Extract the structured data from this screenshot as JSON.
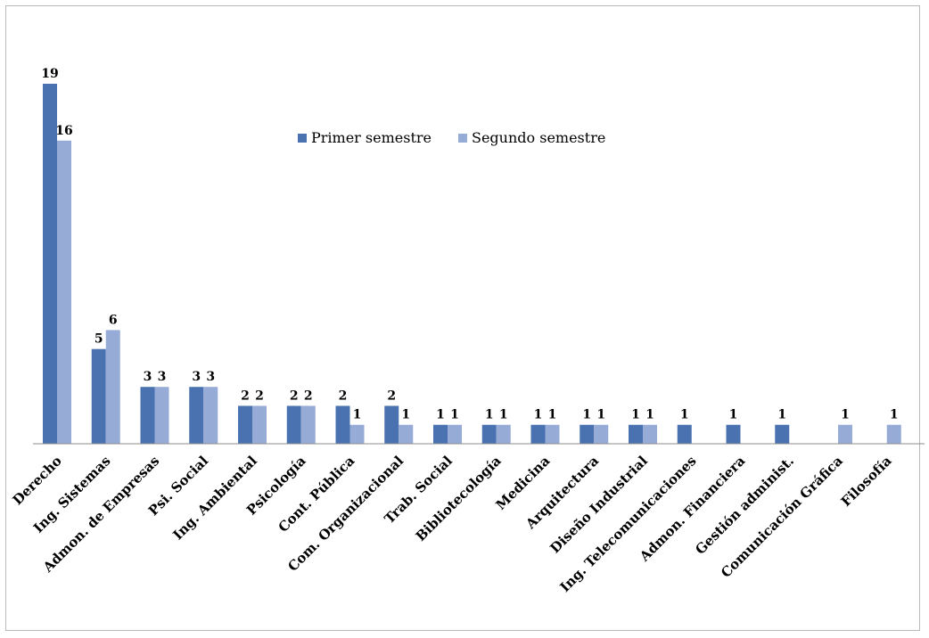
{
  "chart_data": {
    "type": "bar",
    "categories": [
      "Derecho",
      "Ing. Sistemas",
      "Admon. de Empresas",
      "Psi. Social",
      "Ing. Ambiental",
      "Psicología",
      "Cont. Pública",
      "Com. Organizacional",
      "Trab. Social",
      "Bibliotecología",
      "Medicina",
      "Arquitectura",
      "Diseño Industrial",
      "Ing. Telecomunicaciones",
      "Admon. Financiera",
      "Gestión administ.",
      "Comunicación Gráfica",
      "Filosofía"
    ],
    "series": [
      {
        "name": "Primer semestre",
        "color": "#4a72b0",
        "values": [
          19,
          5,
          3,
          3,
          2,
          2,
          2,
          2,
          1,
          1,
          1,
          1,
          1,
          1,
          1,
          1,
          null,
          null
        ]
      },
      {
        "name": "Segundo semestre",
        "color": "#96abd6",
        "values": [
          16,
          6,
          3,
          3,
          2,
          2,
          1,
          1,
          1,
          1,
          1,
          1,
          1,
          null,
          null,
          null,
          1,
          1
        ]
      }
    ],
    "ylim": [
      0,
      19
    ],
    "grid": false,
    "legend_position": "top-center",
    "data_labels": true,
    "axis_color": "#8c8c8c"
  }
}
